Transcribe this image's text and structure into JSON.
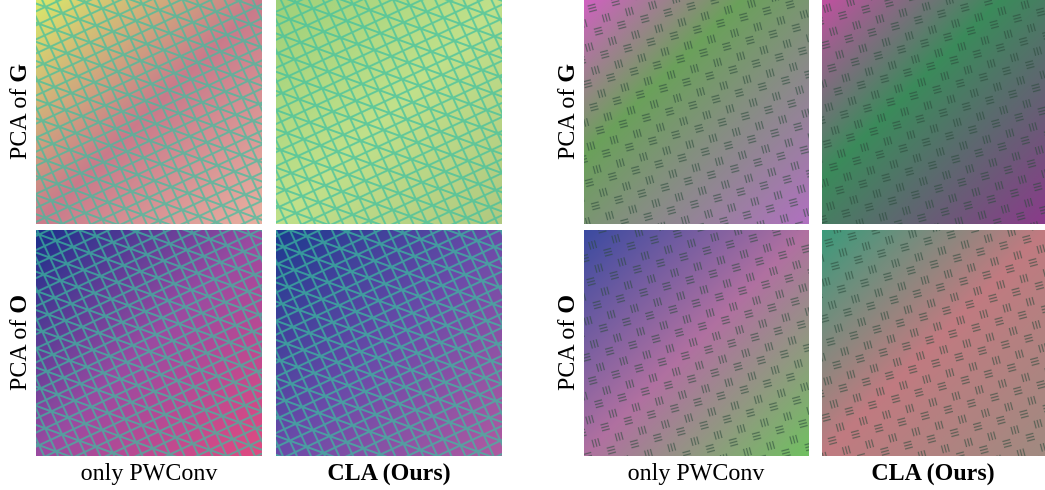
{
  "figure": {
    "left": {
      "rows": [
        {
          "prefix": "PCA of",
          "symbol": "G"
        },
        {
          "prefix": "PCA of",
          "symbol": "O"
        }
      ],
      "columns": [
        "only PWConv",
        "CLA (Ours)"
      ]
    },
    "right": {
      "rows": [
        {
          "prefix": "PCA of",
          "symbol": "G"
        },
        {
          "prefix": "PCA of",
          "symbol": "O"
        }
      ],
      "columns": [
        "only PWConv",
        "CLA (Ours)"
      ]
    }
  }
}
